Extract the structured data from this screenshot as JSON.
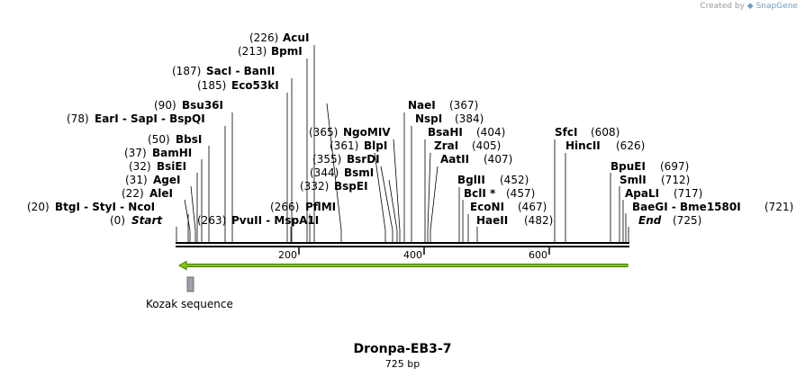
{
  "credit": {
    "prefix": "Created by",
    "brand": "SnapGene"
  },
  "title": "Dronpa-EB3-7",
  "length_label": "725 bp",
  "ruler": {
    "ticks": [
      "200",
      "400",
      "600"
    ]
  },
  "feature": {
    "label": "Kozak sequence"
  },
  "sites": [
    {
      "pos": "(226)",
      "name": "AcuI"
    },
    {
      "pos": "(213)",
      "name": "BpmI"
    },
    {
      "pos": "(187)",
      "name": "SacI - BanII"
    },
    {
      "pos": "(185)",
      "name": "Eco53kI"
    },
    {
      "pos": "(90)",
      "name": "Bsu36I"
    },
    {
      "pos": "(78)",
      "name": "EarI - SapI - BspQI"
    },
    {
      "pos": "(50)",
      "name": "BbsI"
    },
    {
      "pos": "(37)",
      "name": "BamHI"
    },
    {
      "pos": "(32)",
      "name": "BsiEI"
    },
    {
      "pos": "(31)",
      "name": "AgeI"
    },
    {
      "pos": "(22)",
      "name": "AleI"
    },
    {
      "pos": "(20)",
      "name": "BtgI - StyI - NcoI"
    },
    {
      "pos": "(0)",
      "name": "Start"
    },
    {
      "pos": "(263)",
      "name": "PvuII - MspA1I"
    },
    {
      "pos": "(266)",
      "name": "PflMI"
    },
    {
      "pos": "(332)",
      "name": "BspEI"
    },
    {
      "pos": "(344)",
      "name": "BsmI"
    },
    {
      "pos": "(355)",
      "name": "BsrDI"
    },
    {
      "pos": "(361)",
      "name": "BlpI"
    },
    {
      "pos": "(365)",
      "name": "NgoMIV"
    },
    {
      "pos": "(367)",
      "name": "NaeI"
    },
    {
      "pos": "(384)",
      "name": "NspI"
    },
    {
      "pos": "(404)",
      "name": "BsaHI"
    },
    {
      "pos": "(405)",
      "name": "ZraI"
    },
    {
      "pos": "(407)",
      "name": "AatII"
    },
    {
      "pos": "(452)",
      "name": "BglII"
    },
    {
      "pos": "(457)",
      "name": "BclI *"
    },
    {
      "pos": "(467)",
      "name": "EcoNI"
    },
    {
      "pos": "(482)",
      "name": "HaeII"
    },
    {
      "pos": "(608)",
      "name": "SfcI"
    },
    {
      "pos": "(626)",
      "name": "HincII"
    },
    {
      "pos": "(697)",
      "name": "BpuEI"
    },
    {
      "pos": "(712)",
      "name": "SmlI"
    },
    {
      "pos": "(717)",
      "name": "ApaLI"
    },
    {
      "pos": "(721)",
      "name": "BaeGI - Bme1580I"
    },
    {
      "pos": "(725)",
      "name": "End"
    }
  ],
  "colors": {
    "arrow_fill": "#88c800",
    "arrow_stroke": "#3c7a00",
    "feature_fill": "#a0a0a8",
    "backbone": "#000000"
  }
}
